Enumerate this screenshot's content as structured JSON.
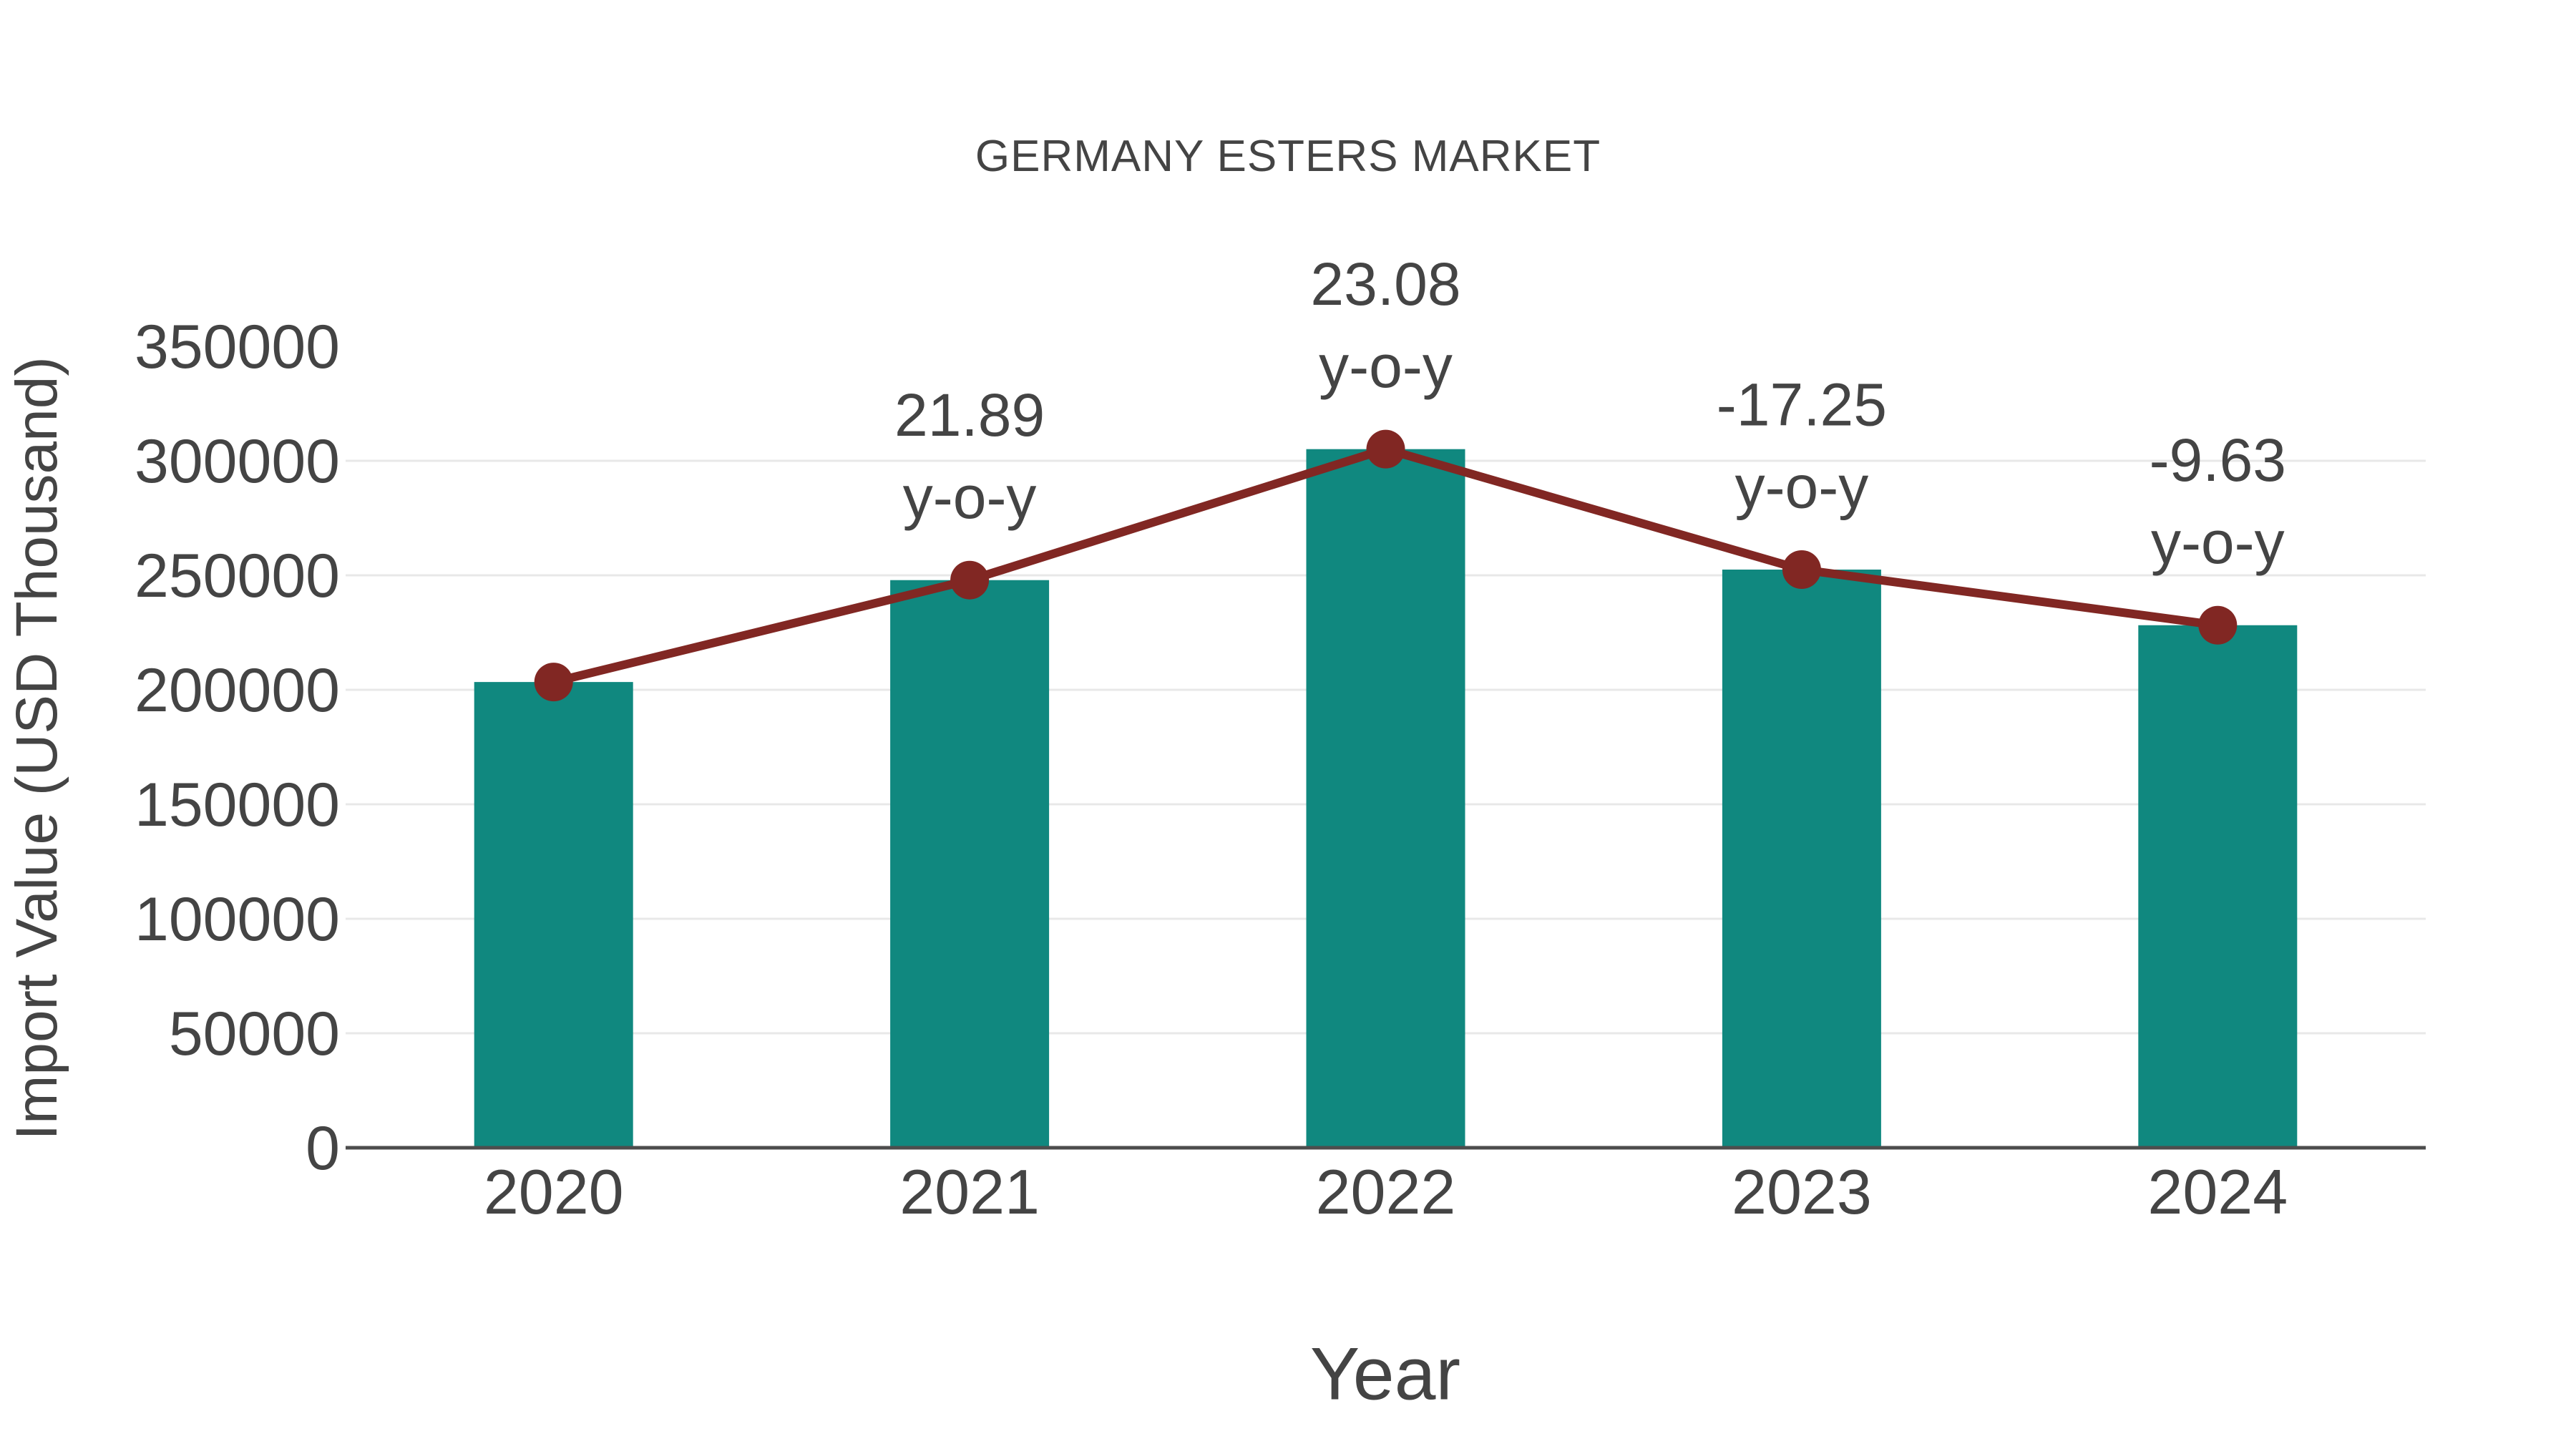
{
  "chart_data": {
    "type": "combo-bar-line",
    "title": "GERMANY ESTERS MARKET",
    "xlabel": "Year",
    "ylabel": "Import Value (USD Thousand)",
    "categories": [
      "2020",
      "2021",
      "2022",
      "2023",
      "2024"
    ],
    "series": [
      {
        "name": "import-value-bars",
        "type": "bar",
        "color": "#10887f",
        "values": [
          203400,
          247900,
          305100,
          252500,
          228200
        ]
      },
      {
        "name": "yoy-change-line",
        "type": "line",
        "color": "#812723",
        "values": [
          203400,
          247900,
          305100,
          252500,
          228200
        ],
        "yoy_percent": [
          null,
          21.89,
          23.08,
          -17.25,
          -9.63
        ]
      }
    ],
    "annotations": [
      {
        "category": "2021",
        "value_label": "21.89",
        "suffix_label": "y-o-y"
      },
      {
        "category": "2022",
        "value_label": "23.08",
        "suffix_label": "y-o-y"
      },
      {
        "category": "2023",
        "value_label": "-17.25",
        "suffix_label": "y-o-y"
      },
      {
        "category": "2024",
        "value_label": "-9.63",
        "suffix_label": "y-o-y"
      }
    ],
    "ylim": [
      0,
      350000
    ],
    "ytick_interval": 50000,
    "ytick_labels": [
      "0",
      "50000",
      "100000",
      "150000",
      "200000",
      "250000",
      "300000",
      "350000"
    ],
    "grid": true,
    "gridline_color": "#e8e8e8",
    "axis_line_color": "#4d4d4d",
    "text_color": "#444444",
    "legend": "none",
    "background": "#ffffff"
  }
}
